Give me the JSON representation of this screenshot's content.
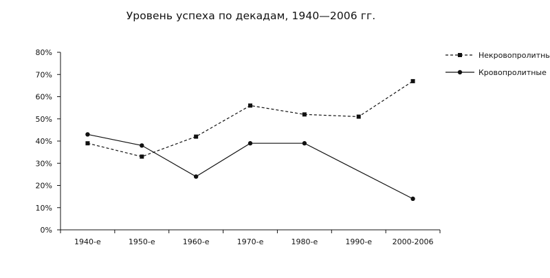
{
  "chart_data": {
    "type": "line",
    "title": "Уровень успеха по декадам, 1940—2006 гг.",
    "xlabel": "",
    "ylabel": "",
    "categories": [
      "1940-е",
      "1950-е",
      "1960-е",
      "1970-е",
      "1980-е",
      "1990-е",
      "2000-2006"
    ],
    "ylim": [
      0,
      80
    ],
    "yticks": [
      0,
      10,
      20,
      30,
      40,
      50,
      60,
      70,
      80
    ],
    "ytick_labels": [
      "0%",
      "10%",
      "20%",
      "30%",
      "40%",
      "50%",
      "60%",
      "70%",
      "80%"
    ],
    "grid": false,
    "legend_position": "top-right",
    "series": [
      {
        "name": "Некровопролитные",
        "style": "dashed",
        "marker": "square",
        "color": "#111111",
        "values": [
          39,
          33,
          42,
          56,
          52,
          51,
          67
        ]
      },
      {
        "name": "Кровопролитные",
        "style": "solid",
        "marker": "circle",
        "color": "#111111",
        "values": [
          43,
          38,
          24,
          39,
          39,
          null,
          14
        ]
      }
    ]
  }
}
